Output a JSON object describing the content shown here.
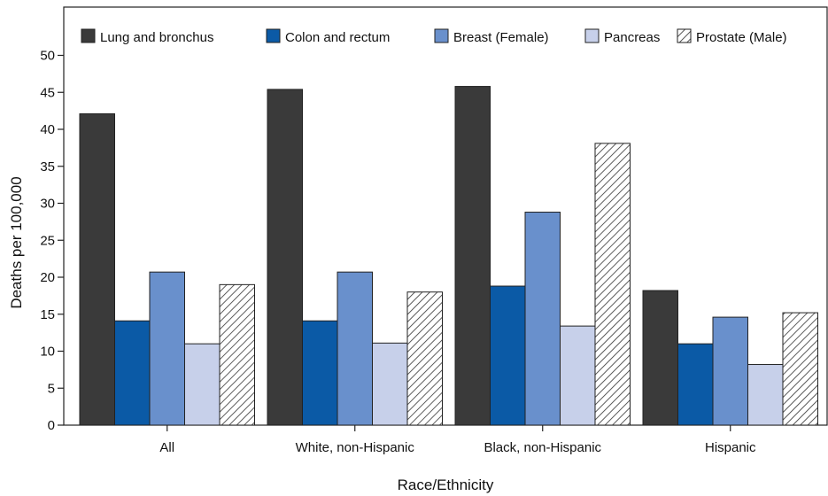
{
  "chart_data": {
    "type": "bar",
    "title": "",
    "xlabel": "Race/Ethnicity",
    "ylabel": "Deaths per 100,000",
    "ylim": [
      0,
      55
    ],
    "yticks": [
      0,
      5,
      10,
      15,
      20,
      25,
      30,
      35,
      40,
      45,
      50
    ],
    "grid": false,
    "legend_position": "top",
    "categories": [
      "All",
      "White, non-Hispanic",
      "Black, non-Hispanic",
      "Hispanic"
    ],
    "series": [
      {
        "name": "Lung and bronchus",
        "values": [
          42.1,
          45.4,
          45.8,
          18.2
        ],
        "color": "#3a3a3a",
        "pattern": "solid"
      },
      {
        "name": "Colon and rectum",
        "values": [
          14.1,
          14.1,
          18.8,
          11.0
        ],
        "color": "#0b5aa6",
        "pattern": "solid"
      },
      {
        "name": "Breast (Female)",
        "values": [
          20.7,
          20.7,
          28.8,
          14.6
        ],
        "color": "#6990cc",
        "pattern": "solid"
      },
      {
        "name": "Pancreas",
        "values": [
          11.0,
          11.1,
          13.4,
          8.2
        ],
        "color": "#c7d0ea",
        "pattern": "solid"
      },
      {
        "name": "Prostate (Male)",
        "values": [
          19.0,
          18.0,
          38.1,
          15.2
        ],
        "color": "#ffffff",
        "pattern": "hatch"
      }
    ]
  }
}
